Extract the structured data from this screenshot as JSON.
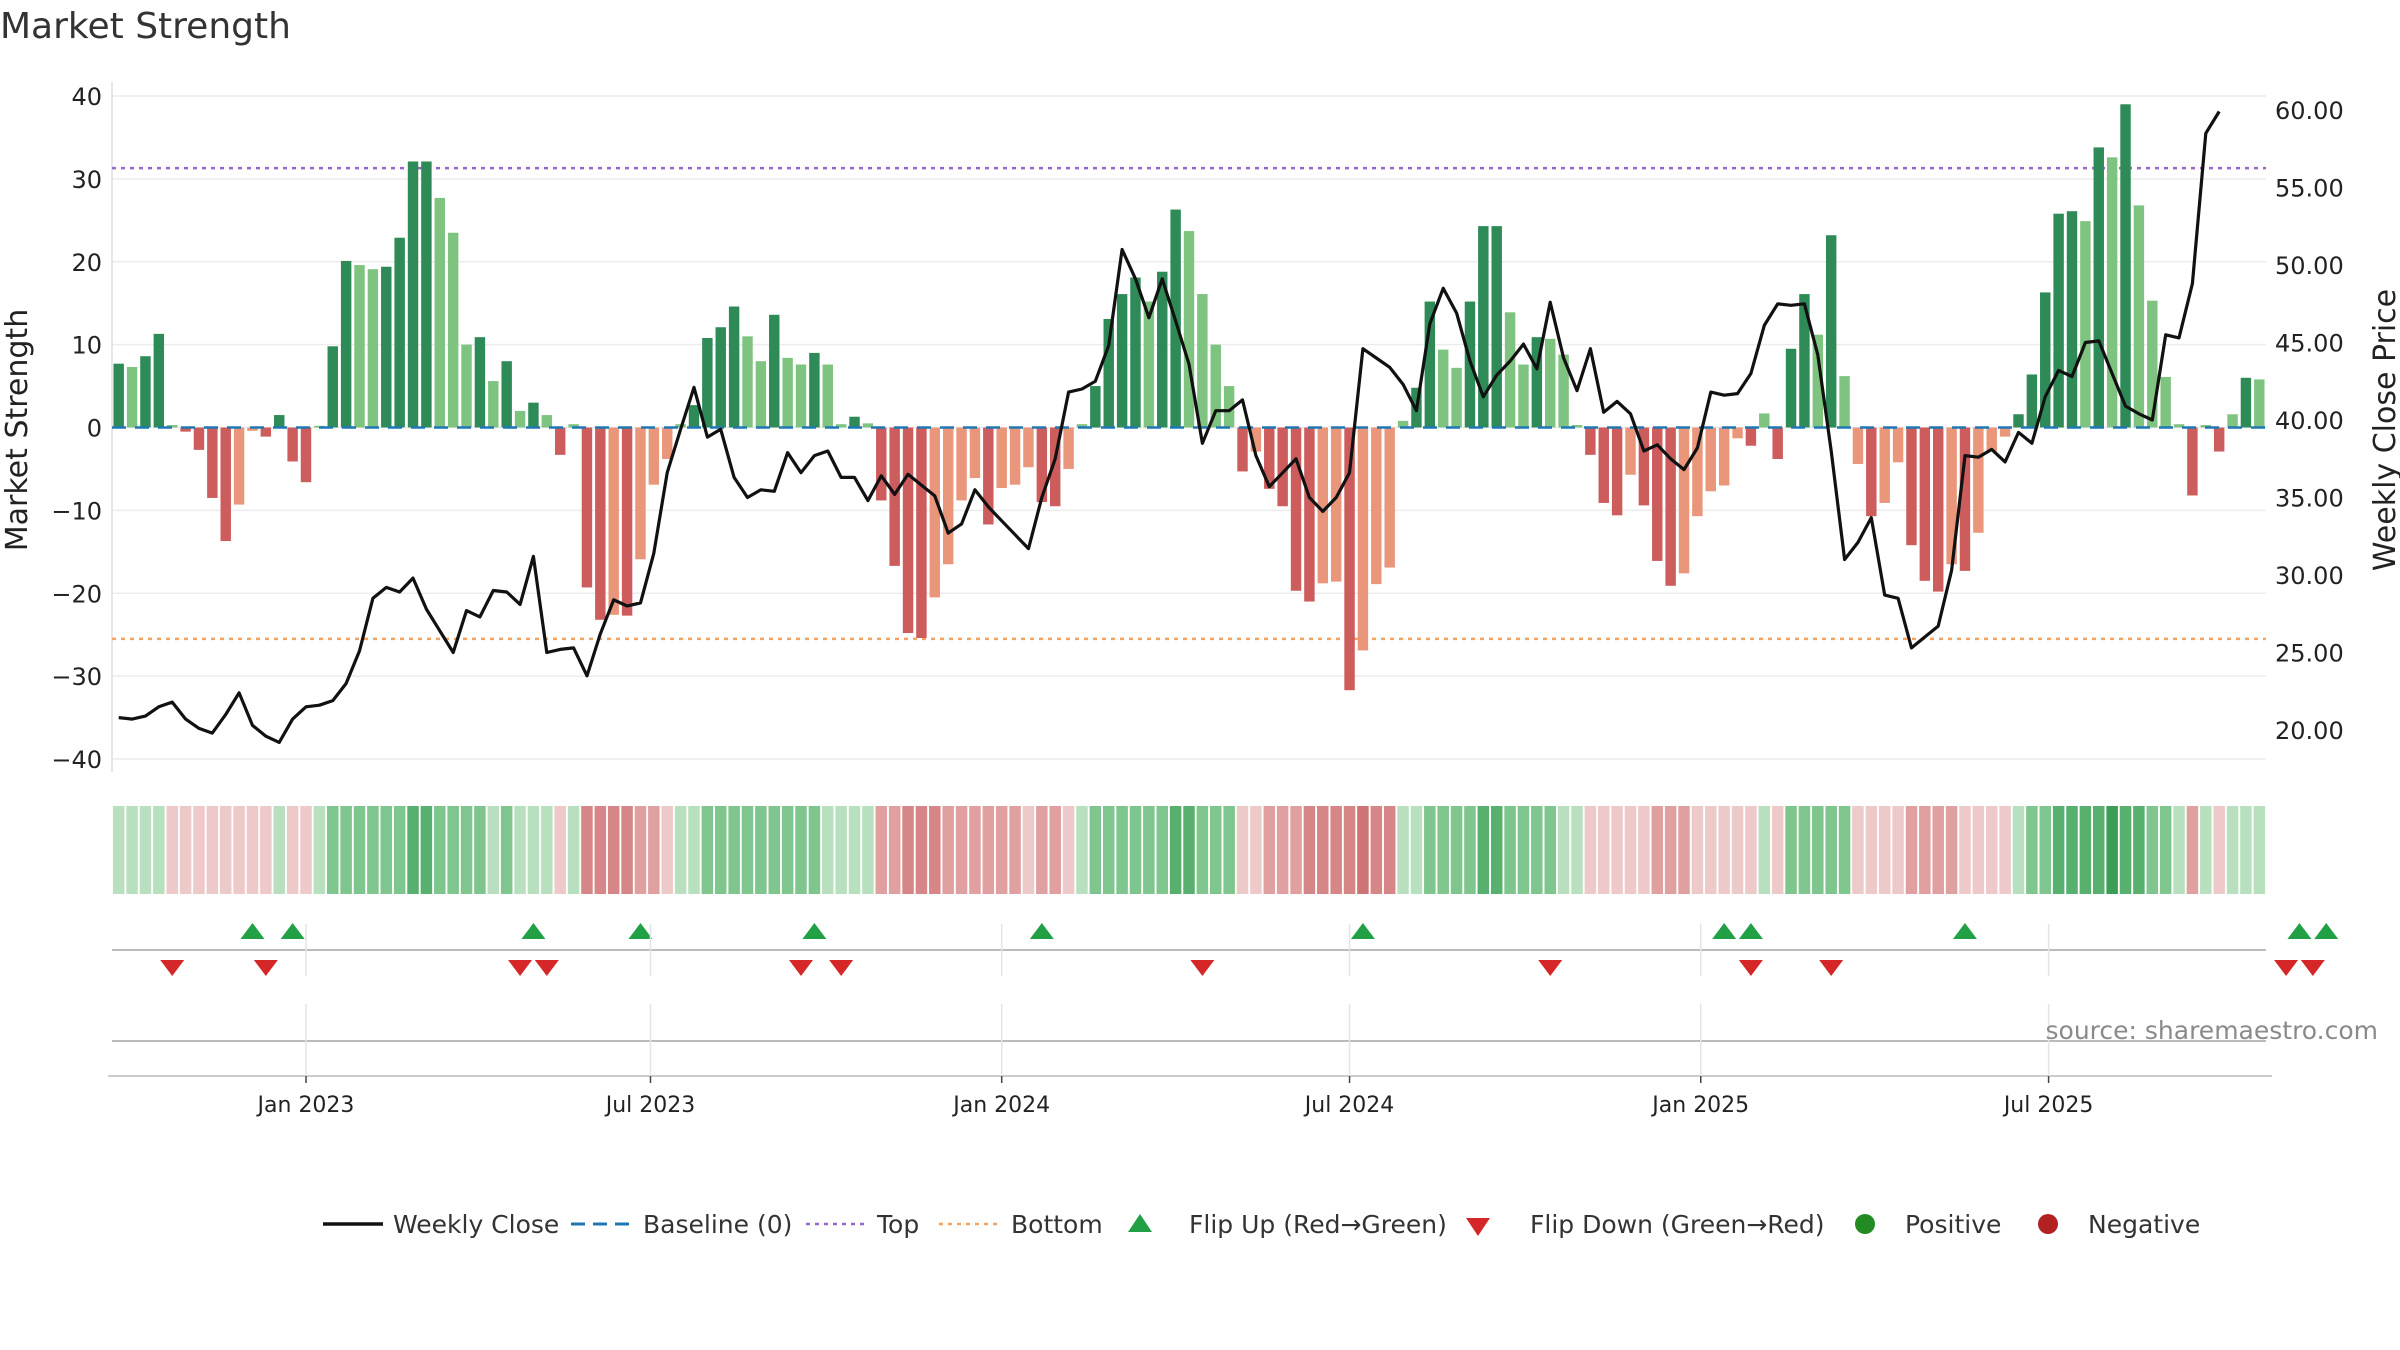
{
  "chart_data": {
    "type": "bar+line",
    "title": "Market Strength",
    "source": "source: sharemaestro.com",
    "ylabel_left": "Market Strength",
    "ylabel_right": "Weekly Close Price",
    "ylim_left": [
      -45,
      42
    ],
    "ylim_right": [
      16.2,
      62.5
    ],
    "y_ticks_left": [
      "40",
      "30",
      "20",
      "10",
      "0",
      "−10",
      "−20",
      "−30",
      "−40"
    ],
    "y_ticks_left_values": [
      40,
      30,
      20,
      10,
      0,
      -10,
      -20,
      -30,
      -40
    ],
    "y_ticks_right": [
      "60.00",
      "55.00",
      "50.00",
      "45.00",
      "40.00",
      "35.00",
      "30.00",
      "25.00",
      "20.00"
    ],
    "y_ticks_right_values": [
      60,
      55,
      50,
      45,
      40,
      35,
      30,
      25,
      20
    ],
    "x_ticks": [
      "Jan 2023",
      "Jul 2023",
      "Jan 2024",
      "Jul 2024",
      "Jan 2025",
      "Jul 2025"
    ],
    "x_ticks_week_index": [
      14.5,
      40.25,
      66.5,
      92.5,
      118.75,
      144.75
    ],
    "top_line": 31.3,
    "bottom_line": -25.5,
    "strength": [
      7.7,
      7.3,
      8.6,
      11.3,
      0.3,
      -0.5,
      -2.7,
      -8.5,
      -13.7,
      -9.3,
      -0.4,
      -1.1,
      1.5,
      -4.1,
      -6.6,
      0.2,
      9.8,
      20.1,
      19.6,
      19.1,
      19.4,
      22.9,
      32.1,
      32.1,
      27.7,
      23.5,
      10.0,
      10.9,
      5.6,
      8.0,
      2.0,
      3.0,
      1.5,
      -3.3,
      0.4,
      -19.3,
      -23.2,
      -22.6,
      -22.7,
      -15.9,
      -6.9,
      -3.8,
      0.4,
      2.7,
      10.8,
      12.1,
      14.6,
      11.0,
      8.0,
      13.6,
      8.4,
      7.6,
      9.0,
      7.6,
      0.4,
      1.3,
      0.5,
      -8.8,
      -16.7,
      -24.8,
      -25.4,
      -20.5,
      -16.5,
      -8.8,
      -6.1,
      -11.7,
      -7.3,
      -6.9,
      -4.8,
      -9.0,
      -9.5,
      -5.0,
      0.4,
      5.0,
      13.1,
      16.1,
      18.1,
      15.2,
      18.8,
      26.3,
      23.7,
      16.1,
      10.0,
      5.0,
      -5.3,
      -2.9,
      -7.4,
      -9.5,
      -19.7,
      -21.0,
      -18.8,
      -18.6,
      -31.7,
      -26.9,
      -18.9,
      -16.9,
      0.8,
      4.8,
      15.2,
      9.4,
      7.2,
      15.2,
      24.3,
      24.3,
      13.9,
      7.6,
      10.9,
      10.7,
      8.8,
      0.3,
      -3.3,
      -9.1,
      -10.6,
      -5.7,
      -9.4,
      -16.1,
      -19.1,
      -17.6,
      -10.7,
      -7.7,
      -7.0,
      -1.3,
      -2.2,
      1.7,
      -3.8,
      9.5,
      16.1,
      11.2,
      23.2,
      6.2,
      -4.4,
      -10.7,
      -9.1,
      -4.2,
      -14.2,
      -18.5,
      -19.8,
      -16.5,
      -17.3,
      -12.7,
      -2.9,
      -1.1,
      1.6,
      6.4,
      16.3,
      25.8,
      26.1,
      24.9,
      33.8,
      32.6,
      39.0,
      26.8,
      15.3,
      6.1,
      0.4,
      -8.2,
      0.3,
      -2.9,
      1.6,
      6.0,
      5.8
    ],
    "weekly_close": [
      20.8,
      20.7,
      20.9,
      21.5,
      21.8,
      20.7,
      20.1,
      19.8,
      21.0,
      22.4,
      20.3,
      19.6,
      19.2,
      20.7,
      21.5,
      21.6,
      21.9,
      23.0,
      25.1,
      28.5,
      29.2,
      28.9,
      29.8,
      27.8,
      26.4,
      25.0,
      27.7,
      27.3,
      29.0,
      28.9,
      28.1,
      31.2,
      25.0,
      25.2,
      25.3,
      23.5,
      26.2,
      28.4,
      28.0,
      28.2,
      31.4,
      36.6,
      39.4,
      42.1,
      38.9,
      39.4,
      36.3,
      35.0,
      35.5,
      35.4,
      37.9,
      36.6,
      37.7,
      38.0,
      36.3,
      36.3,
      34.8,
      36.4,
      35.2,
      36.5,
      35.8,
      35.1,
      32.7,
      33.3,
      35.5,
      34.4,
      33.5,
      32.6,
      31.7,
      35.0,
      37.5,
      41.8,
      42.0,
      42.5,
      44.8,
      51.0,
      49.1,
      46.6,
      49.1,
      46.4,
      43.6,
      38.5,
      40.6,
      40.6,
      41.3,
      37.7,
      35.7,
      36.6,
      37.5,
      35.0,
      34.1,
      35.0,
      36.6,
      44.6,
      44.0,
      43.4,
      42.3,
      40.6,
      46.2,
      48.5,
      46.9,
      43.8,
      41.5,
      42.9,
      43.8,
      44.9,
      43.3,
      47.6,
      44.0,
      41.9,
      44.6,
      40.5,
      41.2,
      40.4,
      38.0,
      38.4,
      37.5,
      36.8,
      38.2,
      41.8,
      41.6,
      41.7,
      43.0,
      46.1,
      47.5,
      47.4,
      47.5,
      44.2,
      38.0,
      31.0,
      32.1,
      33.7,
      28.7,
      28.5,
      25.3,
      26.0,
      26.7,
      30.3,
      37.7,
      37.6,
      38.1,
      37.3,
      39.2,
      38.5,
      41.5,
      43.2,
      42.8,
      45.0,
      45.1,
      43.0,
      40.9,
      40.4,
      40.0,
      45.5,
      45.3,
      48.8,
      58.5,
      59.9
    ],
    "bands": [
      "G1",
      "G1",
      "G1",
      "G1",
      "R1",
      "R1",
      "R1",
      "R1",
      "R1",
      "R1",
      "R1",
      "R1",
      "G1",
      "R1",
      "R1",
      "G1",
      "G2",
      "G2",
      "G2",
      "G2",
      "G2",
      "G2",
      "G3",
      "G3",
      "G2",
      "G2",
      "G2",
      "G2",
      "G1",
      "G2",
      "G1",
      "G1",
      "G1",
      "R1",
      "G1",
      "R3",
      "R3",
      "R3",
      "R3",
      "R2",
      "R2",
      "R1",
      "G1",
      "G1",
      "G2",
      "G2",
      "G2",
      "G2",
      "G2",
      "G2",
      "G2",
      "G2",
      "G2",
      "G1",
      "G1",
      "G1",
      "G1",
      "R2",
      "R2",
      "R3",
      "R3",
      "R3",
      "R2",
      "R2",
      "R2",
      "R2",
      "R2",
      "R2",
      "R1",
      "R2",
      "R2",
      "R1",
      "G1",
      "G2",
      "G2",
      "G2",
      "G2",
      "G2",
      "G2",
      "G3",
      "G3",
      "G2",
      "G2",
      "G2",
      "R1",
      "R1",
      "R2",
      "R2",
      "R2",
      "R3",
      "R3",
      "R3",
      "R3",
      "R4",
      "R3",
      "R3",
      "G1",
      "G1",
      "G2",
      "G2",
      "G2",
      "G2",
      "G3",
      "G3",
      "G2",
      "G2",
      "G2",
      "G2",
      "G1",
      "G1",
      "R1",
      "R1",
      "R1",
      "R1",
      "R1",
      "R2",
      "R2",
      "R2",
      "R1",
      "R1",
      "R1",
      "R1",
      "R1",
      "G1",
      "R1",
      "G2",
      "G2",
      "G2",
      "G2",
      "G2",
      "R1",
      "R1",
      "R1",
      "R1",
      "R2",
      "R2",
      "R2",
      "R2",
      "R1",
      "R1",
      "R1",
      "R1",
      "G1",
      "G2",
      "G2",
      "G3",
      "G3",
      "G3",
      "G3",
      "G4",
      "G3",
      "G3",
      "G2",
      "G2",
      "G1",
      "R2",
      "G1",
      "R1",
      "G1",
      "G1",
      "G1"
    ],
    "flip_up_weeks": [
      10,
      13,
      31,
      39,
      52,
      69,
      93,
      120,
      122,
      138,
      163,
      165
    ],
    "flip_down_weeks": [
      4,
      11,
      30,
      32,
      51,
      54,
      81,
      107,
      122,
      128,
      162,
      164
    ],
    "legend": [
      "Weekly Close",
      "Baseline (0)",
      "Top",
      "Bottom",
      "Flip Up (Red→Green)",
      "Flip Down (Green→Red)",
      "Positive",
      "Negative"
    ],
    "colors": {
      "bar_pos_dark": "#2e8b57",
      "bar_pos_light": "#7fc380",
      "bar_neg_dark": "#cd5c5c",
      "bar_neg_light": "#e9967a",
      "close_line": "#111111",
      "baseline": "#1f77b4",
      "top": "#9966cc",
      "bottom": "#f4a460",
      "flip_up": "#22a046",
      "flip_down": "#d62728",
      "positive": "#228b22",
      "negative": "#b22222",
      "band_g1": "#b8e0bf",
      "band_g2": "#7fc58e",
      "band_g3": "#58b06e",
      "band_g4": "#3c9e55",
      "band_r1": "#eec9c9",
      "band_r2": "#e0a0a0",
      "band_r3": "#d68686",
      "band_r4": "#cf7474"
    }
  }
}
